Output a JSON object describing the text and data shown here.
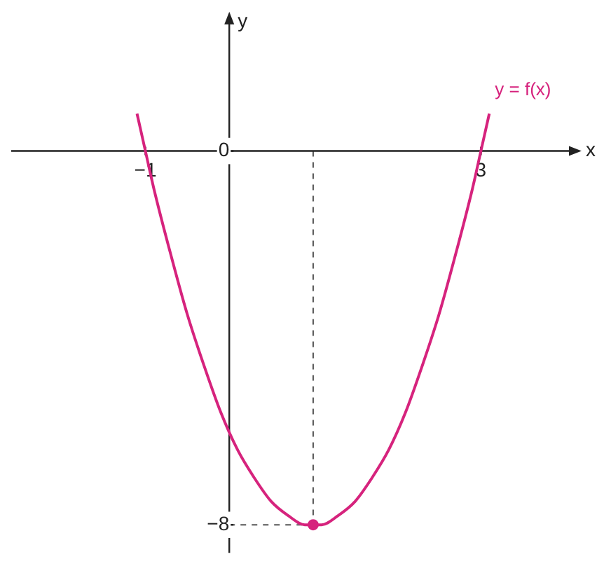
{
  "chart_data": {
    "type": "line",
    "xlabel": "x",
    "ylabel": "y",
    "xlim": [
      -2.6,
      4.1
    ],
    "ylim": [
      -8.6,
      2.8
    ],
    "xticks": [
      -1,
      3
    ],
    "yticks": [
      -8,
      0
    ],
    "grid": false,
    "legend": false,
    "marker": "none",
    "line_style": "solid",
    "series": [
      {
        "name": "y = f(x)",
        "color": "#d6237d",
        "x": [
          -1.1,
          -1,
          -0.9,
          -0.7,
          -0.5,
          -0.3,
          -0.1,
          0.1,
          0.3,
          0.5,
          0.7,
          0.9,
          1,
          1.1,
          1.3,
          1.5,
          1.7,
          1.9,
          2.1,
          2.3,
          2.5,
          2.7,
          2.9,
          3,
          3.1
        ],
        "values": [
          0.8,
          0,
          -0.8,
          -2.2,
          -3.5,
          -4.6,
          -5.6,
          -6.4,
          -7.0,
          -7.5,
          -7.8,
          -8.0,
          -8,
          -8.0,
          -7.8,
          -7.5,
          -7.0,
          -6.4,
          -5.6,
          -4.6,
          -3.5,
          -2.2,
          -0.8,
          0,
          0.8
        ]
      },
      {
        "type": "scatter",
        "color": "#d6237d",
        "marker": "circle",
        "x": [
          1
        ],
        "values": [
          -8
        ]
      }
    ],
    "ref_lines": [
      {
        "axis": "x",
        "value": 1,
        "line_style": "dashed",
        "color": "#555555"
      },
      {
        "axis": "y",
        "value": -8,
        "line_style": "dashed",
        "color": "#555555"
      }
    ]
  }
}
